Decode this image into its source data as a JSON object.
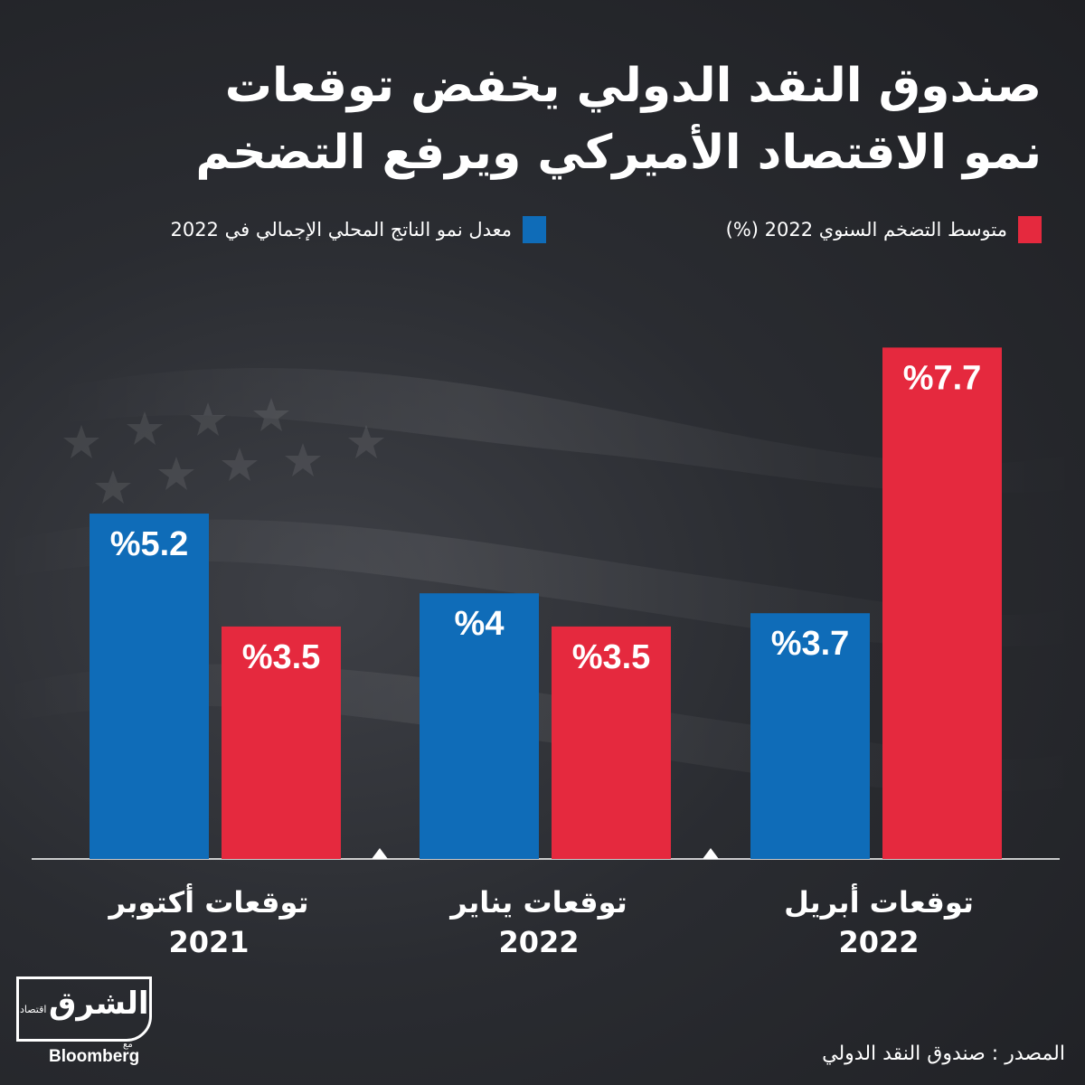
{
  "title_lines": [
    "صندوق النقد الدولي يخفض توقعات",
    "نمو الاقتصاد الأميركي ويرفع التضخم"
  ],
  "legend": {
    "inflation": "متوسط التضخم السنوي 2022 (%)",
    "gdp": "معدل نمو الناتج المحلي الإجمالي في 2022"
  },
  "colors": {
    "gdp": "#0f6cb8",
    "inflation": "#e5293e",
    "background": "#26282d"
  },
  "chart_data": {
    "type": "bar",
    "categories": [
      {
        "line1": "توقعات أكتوبر",
        "line2": "2021"
      },
      {
        "line1": "توقعات يناير",
        "line2": "2022"
      },
      {
        "line1": "توقعات أبريل",
        "line2": "2022"
      }
    ],
    "series": [
      {
        "name": "معدل نمو الناتج المحلي الإجمالي في 2022",
        "key": "gdp",
        "values": [
          5.2,
          4,
          3.7
        ],
        "labels": [
          "%5.2",
          "%4",
          "%3.7"
        ]
      },
      {
        "name": "متوسط التضخم السنوي 2022 (%)",
        "key": "inflation",
        "values": [
          3.5,
          3.5,
          7.7
        ],
        "labels": [
          "%3.5",
          "%3.5",
          "%7.7"
        ]
      }
    ],
    "ylim": [
      0,
      8.1
    ],
    "grid": false,
    "legend_position": "top"
  },
  "source": "المصدر : صندوق النقد الدولي",
  "logo": {
    "main": "الشرق",
    "sub": "اقتصاد",
    "with": "مع",
    "partner": "Bloomberg"
  }
}
